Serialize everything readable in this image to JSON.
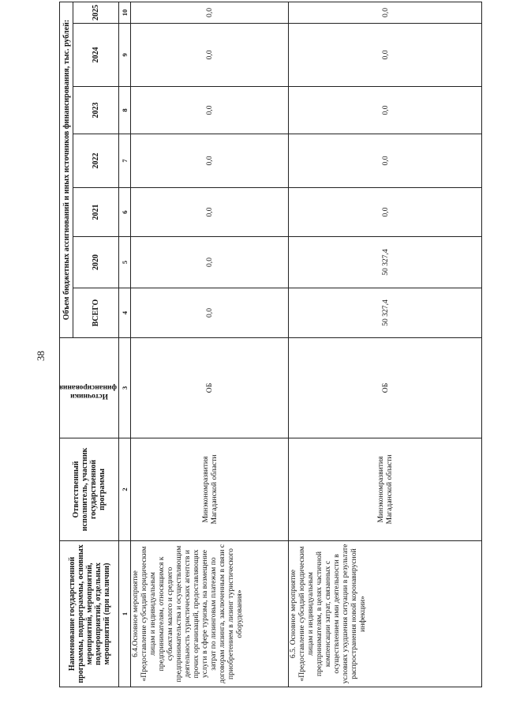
{
  "page_number": "38",
  "header": {
    "col1": "Наименование государственной программы, подпрограммы, основных мероприятий, мероприятий, подмероприятий, отдельных мероприятий (при наличии)",
    "col2": "Ответственный исполнитель, участник государственной программы",
    "col3": "Источники финансирования",
    "funding": "Объем бюджетных ассигнований и иных источников финансирования, тыс. рублей:",
    "years": [
      "ВСЕГО",
      "2020",
      "2021",
      "2022",
      "2023",
      "2024",
      "2025"
    ],
    "numbers": [
      "1",
      "2",
      "3",
      "4",
      "5",
      "6",
      "7",
      "8",
      "9",
      "10"
    ]
  },
  "rows": [
    {
      "name": "6.4.Основное мероприятие «Предоставление субсидий юридическим лицам и индивидуальным предпринимателям, относящимся к субъектам малого и среднего предпринимательства и осуществляющим деятельность туристических агентств и прочих организаций, предоставляющих услуги в сфере туризма, на возмещение затрат по лизинговым платежам по договорам лизинга, заключенным в связи с приобретением в лизинг туристического оборудования»",
      "executor": "Минэкономразвития Магаданской области",
      "source": "ОБ",
      "values": [
        "0,0",
        "0,0",
        "0,0",
        "0,0",
        "0,0",
        "0,0",
        "0,0"
      ]
    },
    {
      "name": "6.5. Основное мероприятие «Предоставление субсидий юридическим лицам и индивидуальным предпринимателям, в целях частичной компенсации затрат, связанных с осуществлением ими деятельности в условиях ухудшения ситуации в результате распространения новой коронавирусной инфекции»",
      "executor": "Минэкономразвития Магаданской области",
      "source": "ОБ",
      "values": [
        "50 327,4",
        "50 327,4",
        "0,0",
        "0,0",
        "0,0",
        "0,0",
        "0,0"
      ]
    }
  ]
}
